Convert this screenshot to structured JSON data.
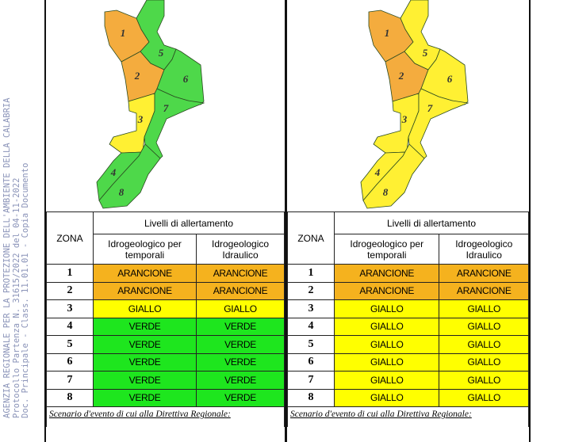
{
  "stamp": {
    "line1": "AGENZIA REGIONALE PER LA PROTEZIONE DELL'AMBIENTE DELLA CALABRIA",
    "line2": "Protocollo Partenza N. 31615/2022 del 04-11-2022",
    "line3": "Doc. Principale - Class. 11.01.01 - Copia Documento"
  },
  "colors": {
    "ARANCIONE": "#F5B21E",
    "GIALLO": "#FFFF00",
    "VERDE": "#1EE61E",
    "map_ARANCIONE": "#F4AC3E",
    "map_GIALLO": "#FFF033",
    "map_VERDE": "#4ED84A"
  },
  "table_header": {
    "zona": "ZONA",
    "livelli": "Livelli di allertamento",
    "col1": "Idrogeologico per temporali",
    "col2": "Idrogeologico Idraulico"
  },
  "panels": [
    {
      "zones": [
        {
          "zona": "1",
          "temporali": "ARANCIONE",
          "idraulico": "ARANCIONE"
        },
        {
          "zona": "2",
          "temporali": "ARANCIONE",
          "idraulico": "ARANCIONE"
        },
        {
          "zona": "3",
          "temporali": "GIALLO",
          "idraulico": "GIALLO"
        },
        {
          "zona": "4",
          "temporali": "VERDE",
          "idraulico": "VERDE"
        },
        {
          "zona": "5",
          "temporali": "VERDE",
          "idraulico": "VERDE"
        },
        {
          "zona": "6",
          "temporali": "VERDE",
          "idraulico": "VERDE"
        },
        {
          "zona": "7",
          "temporali": "VERDE",
          "idraulico": "VERDE"
        },
        {
          "zona": "8",
          "temporali": "VERDE",
          "idraulico": "VERDE"
        }
      ],
      "scenario": "Scenario d'evento di cui alla Direttiva Regionale:"
    },
    {
      "zones": [
        {
          "zona": "1",
          "temporali": "ARANCIONE",
          "idraulico": "ARANCIONE"
        },
        {
          "zona": "2",
          "temporali": "ARANCIONE",
          "idraulico": "ARANCIONE"
        },
        {
          "zona": "3",
          "temporali": "GIALLO",
          "idraulico": "GIALLO"
        },
        {
          "zona": "4",
          "temporali": "GIALLO",
          "idraulico": "GIALLO"
        },
        {
          "zona": "5",
          "temporali": "GIALLO",
          "idraulico": "GIALLO"
        },
        {
          "zona": "6",
          "temporali": "GIALLO",
          "idraulico": "GIALLO"
        },
        {
          "zona": "7",
          "temporali": "GIALLO",
          "idraulico": "GIALLO"
        },
        {
          "zona": "8",
          "temporali": "GIALLO",
          "idraulico": "GIALLO"
        }
      ],
      "scenario": "Scenario d'evento di cui alla Direttiva Regionale:"
    }
  ]
}
